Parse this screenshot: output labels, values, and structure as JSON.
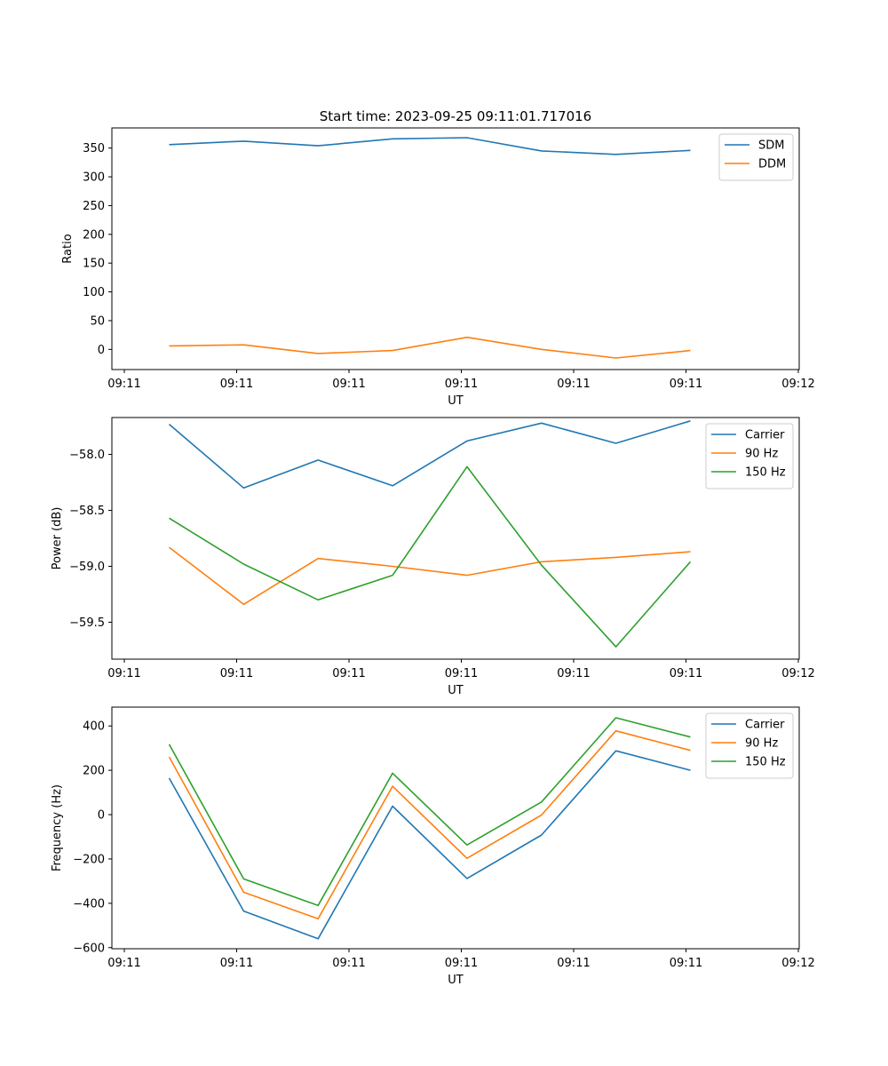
{
  "chart_data": [
    {
      "type": "line",
      "title": "Start time: 2023-09-25 09:11:01.717016",
      "xlabel": "UT",
      "ylabel": "Ratio",
      "x_tick_labels": [
        "09:11",
        "09:11",
        "09:11",
        "09:11",
        "09:11",
        "09:11",
        "09:12"
      ],
      "xlim": [
        0,
        12
      ],
      "ylim": [
        -35,
        385
      ],
      "y_ticks": [
        0,
        50,
        100,
        150,
        200,
        250,
        300,
        350
      ],
      "y_tick_decimals": 0,
      "x": [
        1,
        2.3,
        3.6,
        4.9,
        6.2,
        7.5,
        8.8,
        10.1
      ],
      "legend": "top-right",
      "series": [
        {
          "name": "SDM",
          "color": "#1f77b4",
          "values": [
            356,
            362,
            354,
            366,
            368,
            345,
            339,
            346
          ]
        },
        {
          "name": "DDM",
          "color": "#ff7f0e",
          "values": [
            6,
            8,
            -7,
            -2,
            21,
            0,
            -15,
            -2
          ]
        }
      ]
    },
    {
      "type": "line",
      "title": "",
      "xlabel": "UT",
      "ylabel": "Power (dB)",
      "x_tick_labels": [
        "09:11",
        "09:11",
        "09:11",
        "09:11",
        "09:11",
        "09:11",
        "09:12"
      ],
      "xlim": [
        0,
        12
      ],
      "ylim": [
        -59.83,
        -57.67
      ],
      "y_ticks": [
        -59.5,
        -59.0,
        -58.5,
        -58.0
      ],
      "y_tick_decimals": 1,
      "x": [
        1,
        2.3,
        3.6,
        4.9,
        6.2,
        7.5,
        8.8,
        10.1
      ],
      "legend": "top-right",
      "series": [
        {
          "name": "Carrier",
          "color": "#1f77b4",
          "values": [
            -57.73,
            -58.3,
            -58.05,
            -58.28,
            -57.88,
            -57.72,
            -57.9,
            -57.7
          ]
        },
        {
          "name": "90 Hz",
          "color": "#ff7f0e",
          "values": [
            -58.83,
            -59.34,
            -58.93,
            -59.0,
            -59.08,
            -58.96,
            -58.92,
            -58.87
          ]
        },
        {
          "name": "150 Hz",
          "color": "#2ca02c",
          "values": [
            -58.57,
            -58.98,
            -59.3,
            -59.08,
            -58.11,
            -58.99,
            -59.72,
            -58.96
          ]
        }
      ]
    },
    {
      "type": "line",
      "title": "",
      "xlabel": "UT",
      "ylabel": "Frequency (Hz)",
      "x_tick_labels": [
        "09:11",
        "09:11",
        "09:11",
        "09:11",
        "09:11",
        "09:11",
        "09:12"
      ],
      "xlim": [
        0,
        12
      ],
      "ylim": [
        -605,
        485
      ],
      "y_ticks": [
        -600,
        -400,
        -200,
        0,
        200,
        400
      ],
      "y_tick_decimals": 0,
      "x": [
        1,
        2.3,
        3.6,
        4.9,
        6.2,
        7.5,
        8.8,
        10.1
      ],
      "legend": "top-right",
      "series": [
        {
          "name": "Carrier",
          "color": "#1f77b4",
          "values": [
            165,
            -435,
            -560,
            38,
            -288,
            -92,
            288,
            200
          ]
        },
        {
          "name": "90 Hz",
          "color": "#ff7f0e",
          "values": [
            260,
            -350,
            -470,
            128,
            -197,
            -2,
            378,
            290
          ]
        },
        {
          "name": "150 Hz",
          "color": "#2ca02c",
          "values": [
            317,
            -290,
            -410,
            187,
            -137,
            57,
            437,
            350
          ]
        }
      ]
    }
  ]
}
